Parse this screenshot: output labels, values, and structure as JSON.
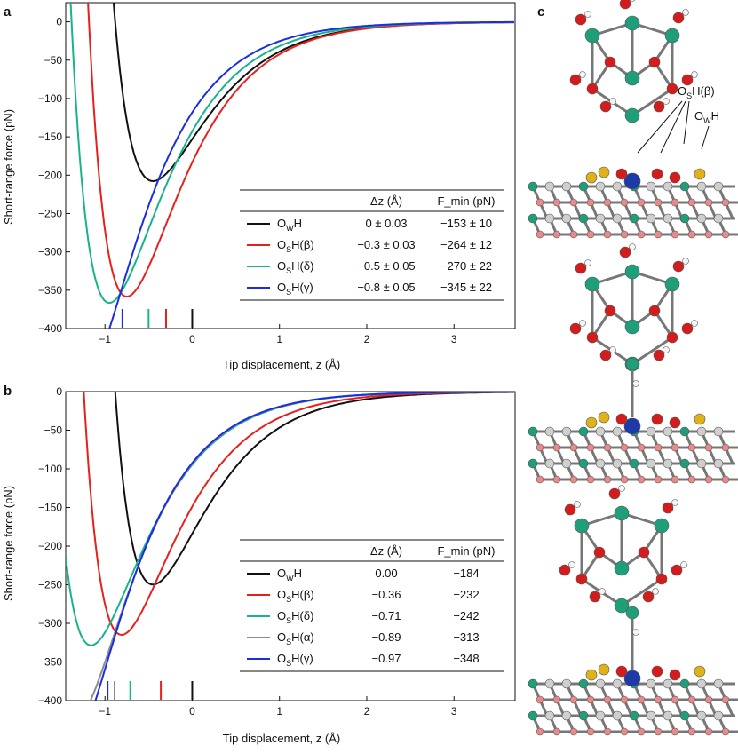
{
  "colors": {
    "OwH": "#111111",
    "OsH_beta": "#e8201c",
    "OsH_delta": "#19b38a",
    "OsH_alpha": "#8c8c8c",
    "OsH_gamma": "#1a2ee0"
  },
  "chart_data": [
    {
      "type": "line",
      "panel": "a",
      "xlabel": "Tip displacement, z (Å)",
      "ylabel": "Short-range force (pN)",
      "xlim": [
        -1.45,
        3.7
      ],
      "ylim": [
        -400,
        25
      ],
      "xticks": [
        -1,
        0,
        1,
        2,
        3
      ],
      "yticks": [
        0,
        -50,
        -100,
        -150,
        -200,
        -250,
        -300,
        -350,
        -400
      ],
      "table_headers": [
        "Δz (Å)",
        "F_min (pN)"
      ],
      "series": [
        {
          "name": "OWH",
          "dz": "0 ± 0.03",
          "fmin": "−153 ± 10",
          "z0": 0.0,
          "F": -153,
          "color_key": "OwH"
        },
        {
          "name": "OSH(β)",
          "dz": "−0.3 ± 0.03",
          "fmin": "−264 ± 12",
          "z0": -0.3,
          "F": -264,
          "color_key": "OsH_beta"
        },
        {
          "name": "OSH(δ)",
          "dz": "−0.5 ± 0.05",
          "fmin": "−270 ± 22",
          "z0": -0.5,
          "F": -270,
          "color_key": "OsH_delta"
        },
        {
          "name": "OSH(γ)",
          "dz": "−0.8 ± 0.05",
          "fmin": "−345 ± 22",
          "z0": -0.8,
          "F": -345,
          "color_key": "OsH_gamma"
        }
      ],
      "markers": [
        -0.8,
        -0.5,
        -0.3,
        0.0
      ]
    },
    {
      "type": "line",
      "panel": "b",
      "xlabel": "Tip displacement, z (Å)",
      "ylabel": "Short-range force (pN)",
      "xlim": [
        -1.45,
        3.7
      ],
      "ylim": [
        -400,
        0
      ],
      "xticks": [
        -1,
        0,
        1,
        2,
        3
      ],
      "yticks": [
        0,
        -50,
        -100,
        -150,
        -200,
        -250,
        -300,
        -350,
        -400
      ],
      "table_headers": [
        "Δz (Å)",
        "F_min (pN)"
      ],
      "series": [
        {
          "name": "OWH",
          "dz": "0.00",
          "fmin": "−184",
          "z0": 0.0,
          "F": -184,
          "color_key": "OwH"
        },
        {
          "name": "OSH(β)",
          "dz": "−0.36",
          "fmin": "−232",
          "z0": -0.36,
          "F": -232,
          "color_key": "OsH_beta"
        },
        {
          "name": "OSH(δ)",
          "dz": "−0.71",
          "fmin": "−242",
          "z0": -0.71,
          "F": -242,
          "color_key": "OsH_delta"
        },
        {
          "name": "OSH(α)",
          "dz": "−0.89",
          "fmin": "−313",
          "z0": -0.89,
          "F": -313,
          "color_key": "OsH_alpha"
        },
        {
          "name": "OSH(γ)",
          "dz": "−0.97",
          "fmin": "−348",
          "z0": -0.97,
          "F": -348,
          "color_key": "OsH_gamma"
        }
      ],
      "markers": [
        -0.97,
        -0.89,
        -0.71,
        -0.36,
        0.0
      ]
    }
  ],
  "panel_labels": {
    "a": "a",
    "b": "b",
    "c": "c"
  },
  "panel_c": {
    "label_OsH": "OSH(β)",
    "label_OwH": "OWH"
  }
}
